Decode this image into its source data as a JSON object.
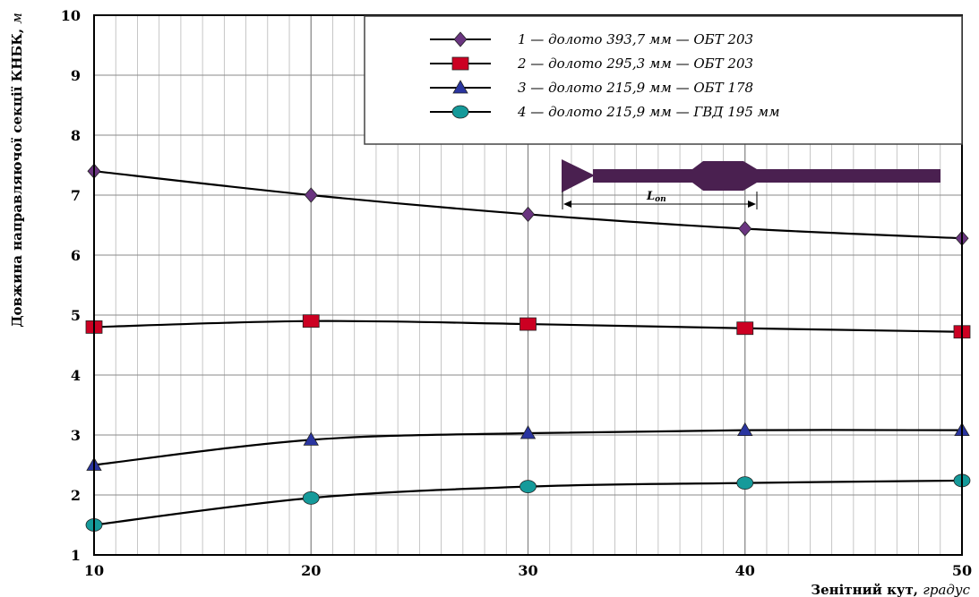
{
  "chart_data": {
    "type": "line",
    "xlabel": "Зенітний кут,",
    "xlabel_unit": "градус",
    "ylabel": "Довжина направляючої секції КНБК,",
    "ylabel_unit": "м",
    "xlim": [
      10,
      50
    ],
    "ylim": [
      1,
      10
    ],
    "x_ticks": [
      10,
      20,
      30,
      40,
      50
    ],
    "y_ticks": [
      1,
      2,
      3,
      4,
      5,
      6,
      7,
      8,
      9,
      10
    ],
    "x_minor_step": 1,
    "grid": true,
    "legend_position": "top-right",
    "x": [
      10,
      20,
      30,
      40,
      50
    ],
    "series": [
      {
        "name": "1 — долото 393,7 мм — ОБТ 203",
        "marker": "diamond",
        "color": "#6a3580",
        "values": [
          7.4,
          7.0,
          6.68,
          6.44,
          6.28
        ]
      },
      {
        "name": "2 — долото 295,3 мм — ОБТ 203",
        "marker": "square",
        "color": "#cc0022",
        "values": [
          4.8,
          4.9,
          4.85,
          4.78,
          4.72
        ]
      },
      {
        "name": "3 — долото 215,9 мм — ОБТ 178",
        "marker": "triangle",
        "color": "#2a35a0",
        "values": [
          2.5,
          2.92,
          3.03,
          3.08,
          3.08
        ]
      },
      {
        "name": "4 — долото 215,9 мм — ГВД 195 мм",
        "marker": "circle",
        "color": "#159a9a",
        "values": [
          1.5,
          1.95,
          2.14,
          2.2,
          2.24
        ]
      }
    ],
    "inset": {
      "label_main": "L",
      "label_sub": "оп",
      "color": "#4a2050"
    }
  }
}
